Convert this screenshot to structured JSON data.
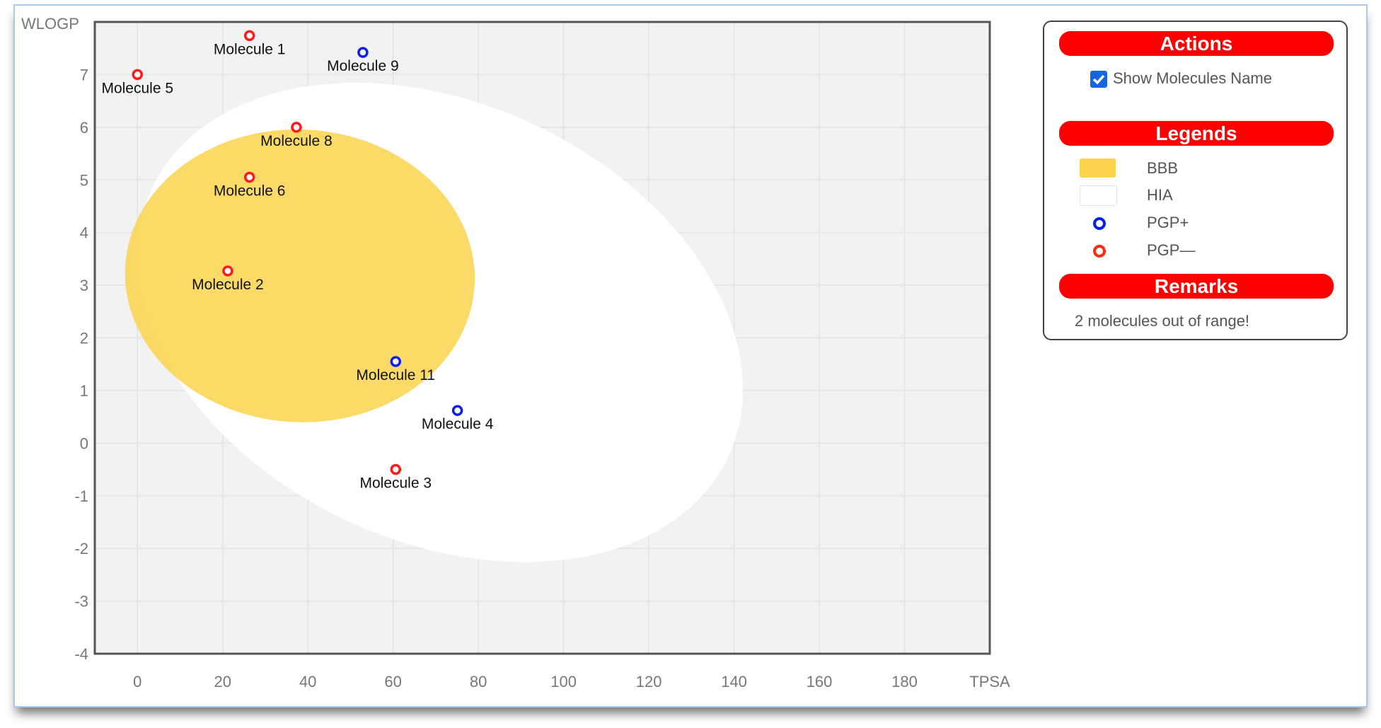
{
  "chart_data": {
    "type": "scatter",
    "xlabel": "TPSA",
    "ylabel": "WLOGP",
    "xlim": [
      -10,
      200
    ],
    "ylim": [
      -4,
      8
    ],
    "x_ticks": [
      0,
      20,
      40,
      60,
      80,
      100,
      120,
      140,
      160,
      180
    ],
    "y_ticks": [
      7,
      6,
      5,
      4,
      3,
      2,
      1,
      0,
      -1,
      -2,
      -3,
      -4
    ],
    "grid": true,
    "regions": [
      {
        "name": "HIA",
        "color": "#ffffff",
        "center": [
          71.051,
          2.292
        ],
        "semi_axes": [
          71.04,
          4.37
        ],
        "angle_deg": -1.031
      },
      {
        "name": "BBB",
        "color": "#fcd34d",
        "center": [
          38.117,
          3.177
        ],
        "semi_axes": [
          41.03,
          2.78
        ],
        "angle_deg": -0.067
      }
    ],
    "points": [
      {
        "name": "Molecule 1",
        "x": 26.3,
        "y": 7.74,
        "class": "PGP-"
      },
      {
        "name": "Molecule 9",
        "x": 52.9,
        "y": 7.42,
        "class": "PGP+"
      },
      {
        "name": "Molecule 5",
        "x": 0.0,
        "y": 7.0,
        "class": "PGP-"
      },
      {
        "name": "Molecule 8",
        "x": 37.3,
        "y": 6.0,
        "class": "PGP-"
      },
      {
        "name": "Molecule 6",
        "x": 26.3,
        "y": 5.05,
        "class": "PGP-"
      },
      {
        "name": "Molecule 2",
        "x": 21.2,
        "y": 3.27,
        "class": "PGP-"
      },
      {
        "name": "Molecule 11",
        "x": 60.6,
        "y": 1.55,
        "class": "PGP+"
      },
      {
        "name": "Molecule 4",
        "x": 75.1,
        "y": 0.62,
        "class": "PGP+"
      },
      {
        "name": "Molecule 3",
        "x": 60.6,
        "y": -0.5,
        "class": "PGP-"
      }
    ],
    "colors": {
      "PGP+": "#0a1ff5",
      "PGP-": "#ff1a1a",
      "plot_bg": "#f2f2f2"
    }
  },
  "panel": {
    "actions_title": "Actions",
    "show_names_label": "Show Molecules Name",
    "show_names_checked": true,
    "legends_title": "Legends",
    "legend": [
      {
        "label": "BBB",
        "kind": "swatch",
        "color": "#fcd34d"
      },
      {
        "label": "HIA",
        "kind": "swatch",
        "color": "#ffffff"
      },
      {
        "label": "PGP+",
        "kind": "ring",
        "color": "#0a1ff5"
      },
      {
        "label": "PGP—",
        "kind": "ring",
        "color": "#ff2a0a"
      }
    ],
    "remarks_title": "Remarks",
    "remarks_text": "2 molecules out of range!"
  }
}
